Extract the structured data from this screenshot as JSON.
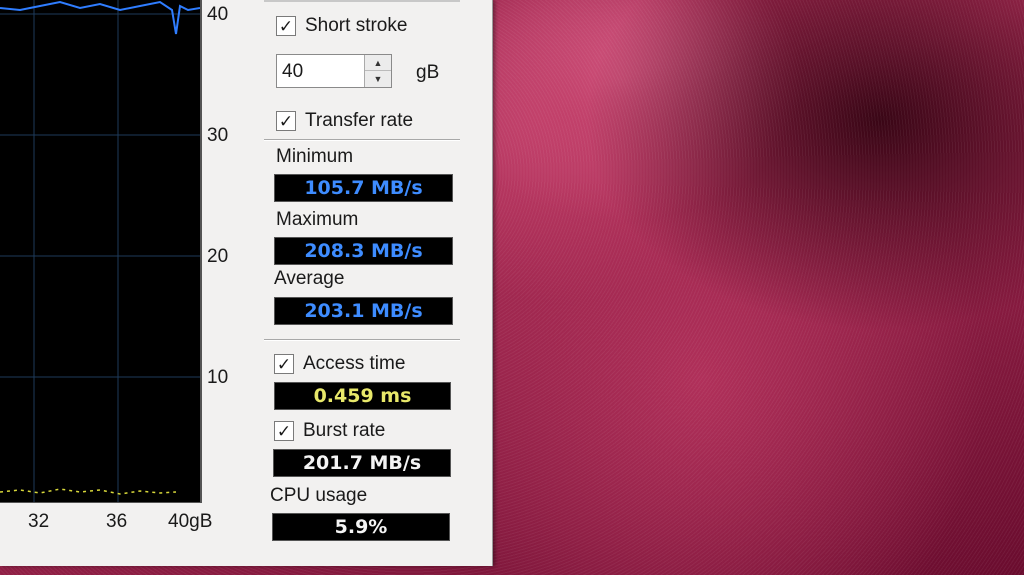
{
  "graph": {
    "y_ticks": [
      "40",
      "30",
      "20",
      "10"
    ],
    "x_ticks": [
      "32",
      "36",
      "40gB"
    ]
  },
  "options": {
    "short_stroke": {
      "label": "Short stroke",
      "checked": true
    },
    "stroke_value": "40",
    "stroke_unit": "gB",
    "transfer_rate": {
      "label": "Transfer rate",
      "checked": true
    }
  },
  "transfer": {
    "minimum_label": "Minimum",
    "minimum_value": "105.7 MB/s",
    "maximum_label": "Maximum",
    "maximum_value": "208.3 MB/s",
    "average_label": "Average",
    "average_value": "203.1 MB/s"
  },
  "access_time": {
    "label": "Access time",
    "checked": true,
    "value": "0.459 ms"
  },
  "burst_rate": {
    "label": "Burst rate",
    "checked": true,
    "value": "201.7 MB/s"
  },
  "cpu_usage": {
    "label": "CPU usage",
    "value": "5.9%"
  },
  "icons": {
    "checkbox": "check-icon",
    "spin_up": "triangle-up-icon",
    "spin_down": "triangle-down-icon"
  },
  "colors": {
    "transfer_line": "#2f7dff",
    "access_dots": "#d8d83a",
    "grid": "#1e3a5a",
    "readout_blue": "#3e8cff",
    "readout_yellow": "#e8e86a"
  }
}
